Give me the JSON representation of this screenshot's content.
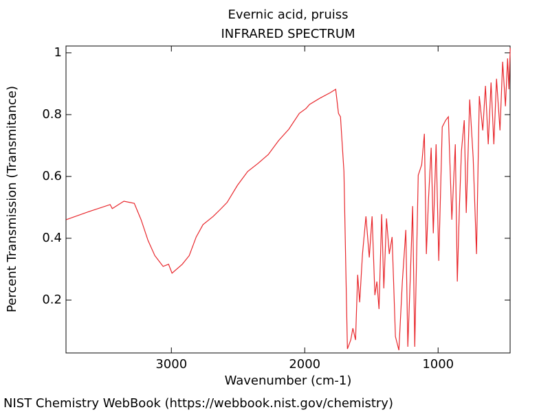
{
  "chart_data": {
    "type": "line",
    "title": "Evernic acid, pruiss",
    "subtitle": "INFRARED SPECTRUM",
    "xlabel": "Wavenumber (cm-1)",
    "ylabel": "Percent Transmission (Transmitance)",
    "source": "NIST Chemistry WebBook (https://webbook.nist.gov/chemistry)",
    "color": "#e8262b",
    "xlim": [
      3790,
      460
    ],
    "ylim": [
      0.029,
      1.022
    ],
    "xticks": [
      3000,
      2000,
      1000
    ],
    "yticks": [
      0.2,
      0.4,
      0.6,
      0.8,
      1
    ],
    "x": [
      3789,
      3613,
      3459,
      3443,
      3356,
      3278,
      3227,
      3175,
      3124,
      3062,
      3021,
      2995,
      2918,
      2866,
      2814,
      2763,
      2686,
      2634,
      2582,
      2505,
      2428,
      2351,
      2273,
      2196,
      2119,
      2041,
      1990,
      1964,
      1887,
      1809,
      1768,
      1747,
      1732,
      1706,
      1691,
      1680,
      1655,
      1639,
      1619,
      1603,
      1588,
      1567,
      1541,
      1516,
      1495,
      1474,
      1459,
      1443,
      1423,
      1407,
      1387,
      1366,
      1345,
      1320,
      1294,
      1268,
      1242,
      1227,
      1206,
      1191,
      1175,
      1149,
      1123,
      1103,
      1088,
      1072,
      1052,
      1036,
      1015,
      995,
      969,
      943,
      923,
      897,
      871,
      856,
      840,
      825,
      804,
      789,
      763,
      737,
      712,
      691,
      665,
      645,
      624,
      603,
      582,
      562,
      536,
      516,
      495,
      479,
      469,
      459
    ],
    "values": [
      0.46,
      0.487,
      0.509,
      0.496,
      0.52,
      0.513,
      0.46,
      0.393,
      0.344,
      0.309,
      0.316,
      0.287,
      0.316,
      0.344,
      0.404,
      0.444,
      0.471,
      0.493,
      0.516,
      0.571,
      0.616,
      0.642,
      0.671,
      0.716,
      0.753,
      0.804,
      0.82,
      0.833,
      0.853,
      0.871,
      0.882,
      0.804,
      0.793,
      0.616,
      0.282,
      0.042,
      0.071,
      0.109,
      0.071,
      0.282,
      0.193,
      0.349,
      0.471,
      0.338,
      0.471,
      0.216,
      0.26,
      0.171,
      0.478,
      0.238,
      0.464,
      0.349,
      0.404,
      0.082,
      0.038,
      0.26,
      0.427,
      0.049,
      0.304,
      0.504,
      0.049,
      0.604,
      0.638,
      0.738,
      0.349,
      0.527,
      0.693,
      0.416,
      0.704,
      0.327,
      0.76,
      0.782,
      0.793,
      0.46,
      0.704,
      0.26,
      0.504,
      0.682,
      0.782,
      0.482,
      0.849,
      0.66,
      0.349,
      0.86,
      0.749,
      0.893,
      0.704,
      0.904,
      0.704,
      0.916,
      0.749,
      0.971,
      0.827,
      0.982,
      0.882,
      1.016
    ]
  }
}
